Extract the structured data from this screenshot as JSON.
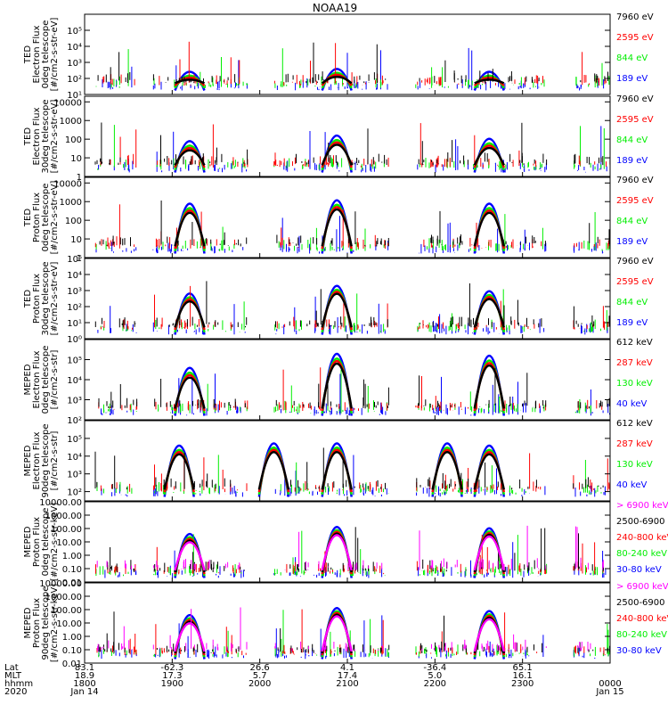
{
  "title": "NOAA19",
  "colors": {
    "black": "#000000",
    "red": "#ff0000",
    "green": "#00ee00",
    "blue": "#0000ff",
    "magenta": "#ff00ff"
  },
  "chart_data": [
    {
      "type": "scatter",
      "ylabel": [
        "TED",
        "Electron Flux",
        "0deg telescope",
        "[#/cm2-s-str-eV]"
      ],
      "log": true,
      "ylim": [
        10,
        1000000
      ],
      "yticks": [
        "10¹",
        "10²",
        "10³",
        "10⁴",
        "10⁵"
      ],
      "ytick_values": [
        10,
        100,
        1000,
        10000,
        100000
      ],
      "series": [
        {
          "name": "7960 eV",
          "color": "#000000"
        },
        {
          "name": "2595 eV",
          "color": "#ff0000"
        },
        {
          "name": "844 eV",
          "color": "#00ee00"
        },
        {
          "name": "189 eV",
          "color": "#0000ff"
        }
      ],
      "peaks": [
        {
          "x": 0.2,
          "y": 200
        },
        {
          "x": 0.48,
          "y": 300
        },
        {
          "x": 0.77,
          "y": 200
        }
      ]
    },
    {
      "type": "scatter",
      "ylabel": [
        "TED",
        "Electron Flux",
        "30deg telescope",
        "[#/cm2-s-str-eV]"
      ],
      "log": true,
      "ylim": [
        1,
        20000
      ],
      "yticks": [
        "1",
        "10",
        "100",
        "1000",
        "10000"
      ],
      "ytick_values": [
        1,
        10,
        100,
        1000,
        10000
      ],
      "series": [
        {
          "name": "7960 eV",
          "color": "#000000"
        },
        {
          "name": "2595 eV",
          "color": "#ff0000"
        },
        {
          "name": "844 eV",
          "color": "#00ee00"
        },
        {
          "name": "189 eV",
          "color": "#0000ff"
        }
      ],
      "peaks": [
        {
          "x": 0.2,
          "y": 60
        },
        {
          "x": 0.48,
          "y": 120
        },
        {
          "x": 0.77,
          "y": 80
        }
      ]
    },
    {
      "type": "scatter",
      "ylabel": [
        "TED",
        "Proton Flux",
        "0deg telescope",
        "[#/cm2-s-str-eV]"
      ],
      "log": true,
      "ylim": [
        1,
        20000
      ],
      "yticks": [
        "1",
        "10",
        "100",
        "1000",
        "10000"
      ],
      "ytick_values": [
        1,
        10,
        100,
        1000,
        10000
      ],
      "series": [
        {
          "name": "7960 eV",
          "color": "#000000"
        },
        {
          "name": "2595 eV",
          "color": "#ff0000"
        },
        {
          "name": "844 eV",
          "color": "#00ee00"
        },
        {
          "name": "189 eV",
          "color": "#0000ff"
        }
      ],
      "peaks": [
        {
          "x": 0.2,
          "y": 600
        },
        {
          "x": 0.48,
          "y": 900
        },
        {
          "x": 0.77,
          "y": 600
        }
      ]
    },
    {
      "type": "scatter",
      "ylabel": [
        "TED",
        "Proton Flux",
        "30deg telescope",
        "[#/cm2-s-str-eV]"
      ],
      "log": true,
      "ylim": [
        1,
        100000
      ],
      "yticks": [
        "10⁰",
        "10¹",
        "10²",
        "10³",
        "10⁴",
        "10⁵"
      ],
      "ytick_values": [
        1,
        10,
        100,
        1000,
        10000,
        100000
      ],
      "series": [
        {
          "name": "7960 eV",
          "color": "#000000"
        },
        {
          "name": "2595 eV",
          "color": "#ff0000"
        },
        {
          "name": "844 eV",
          "color": "#00ee00"
        },
        {
          "name": "189 eV",
          "color": "#0000ff"
        }
      ],
      "peaks": [
        {
          "x": 0.2,
          "y": 500
        },
        {
          "x": 0.48,
          "y": 1500
        },
        {
          "x": 0.77,
          "y": 700
        }
      ]
    },
    {
      "type": "scatter",
      "ylabel": [
        "MEPED",
        "Electron Flux",
        "0deg telescope",
        "[#/cm2-s-str]"
      ],
      "log": true,
      "ylim": [
        100,
        1000000
      ],
      "yticks": [
        "10²",
        "10³",
        "10⁴",
        "10⁵"
      ],
      "ytick_values": [
        100,
        1000,
        10000,
        100000
      ],
      "series": [
        {
          "name": "612 keV",
          "color": "#000000"
        },
        {
          "name": "287 keV",
          "color": "#ff0000"
        },
        {
          "name": "130 keV",
          "color": "#00ee00"
        },
        {
          "name": "40 keV",
          "color": "#0000ff"
        }
      ],
      "peaks": [
        {
          "x": 0.2,
          "y": 30000
        },
        {
          "x": 0.48,
          "y": 150000
        },
        {
          "x": 0.77,
          "y": 120000
        }
      ]
    },
    {
      "type": "scatter",
      "ylabel": [
        "MEPED",
        "Electron Flux",
        "90deg telescope",
        "[#/cm2-s-str]"
      ],
      "log": true,
      "ylim": [
        30,
        1000000
      ],
      "yticks": [
        "10²",
        "10³",
        "10⁴",
        "10⁵"
      ],
      "ytick_values": [
        100,
        1000,
        10000,
        100000
      ],
      "series": [
        {
          "name": "612 keV",
          "color": "#000000"
        },
        {
          "name": "287 keV",
          "color": "#ff0000"
        },
        {
          "name": "130 keV",
          "color": "#00ee00"
        },
        {
          "name": "40 keV",
          "color": "#0000ff"
        }
      ],
      "peaks": [
        {
          "x": 0.18,
          "y": 30000
        },
        {
          "x": 0.36,
          "y": 40000
        },
        {
          "x": 0.48,
          "y": 40000
        },
        {
          "x": 0.69,
          "y": 40000
        },
        {
          "x": 0.77,
          "y": 30000
        }
      ]
    },
    {
      "type": "scatter",
      "ylabel": [
        "MEPED",
        "Proton Flux",
        "0deg telescope",
        "[#/cm2-s-str-keV]"
      ],
      "log": true,
      "ylim": [
        0.01,
        10000
      ],
      "yticks": [
        "0.01",
        "0.10",
        "1.00",
        "10.00",
        "100.00",
        "1000.00",
        "10000.00"
      ],
      "ytick_values": [
        0.01,
        0.1,
        1,
        10,
        100,
        1000,
        10000
      ],
      "series": [
        {
          "name": "> 6900 keV",
          "color": "#ff00ff"
        },
        {
          "name": "2500-6900",
          "color": "#000000"
        },
        {
          "name": "240-800 keV",
          "color": "#ff0000"
        },
        {
          "name": "80-240 keV",
          "color": "#00ee00"
        },
        {
          "name": "30-80 keV",
          "color": "#0000ff"
        }
      ],
      "peaks": [
        {
          "x": 0.2,
          "y": 30
        },
        {
          "x": 0.48,
          "y": 100
        },
        {
          "x": 0.77,
          "y": 80
        }
      ]
    },
    {
      "type": "scatter",
      "ylabel": [
        "MEPED",
        "Proton Flux",
        "90deg telescope",
        "[#/cm2-s-str-keV]"
      ],
      "log": true,
      "ylim": [
        0.01,
        10000
      ],
      "yticks": [
        "0.01",
        "0.10",
        "1.00",
        "10.00",
        "100.00",
        "1000.00",
        "10000.00"
      ],
      "ytick_values": [
        0.01,
        0.1,
        1,
        10,
        100,
        1000,
        10000
      ],
      "series": [
        {
          "name": "> 6900 keV",
          "color": "#ff00ff"
        },
        {
          "name": "2500-6900",
          "color": "#000000"
        },
        {
          "name": "240-800 keV",
          "color": "#ff0000"
        },
        {
          "name": "80-240 keV",
          "color": "#00ee00"
        },
        {
          "name": "30-80 keV",
          "color": "#0000ff"
        }
      ],
      "peaks": [
        {
          "x": 0.2,
          "y": 30
        },
        {
          "x": 0.48,
          "y": 100
        },
        {
          "x": 0.77,
          "y": 60
        }
      ]
    }
  ],
  "xaxis": {
    "row_labels": [
      "Lat",
      "MLT",
      "hhmm",
      "2020"
    ],
    "columns": [
      {
        "lat": "83.1",
        "mlt": "18.9",
        "time": "1800",
        "date": "Jan 14"
      },
      {
        "lat": "-62.3",
        "mlt": "17.3",
        "time": "1900",
        "date": ""
      },
      {
        "lat": "26.6",
        "mlt": "5.7",
        "time": "2000",
        "date": ""
      },
      {
        "lat": "4.1",
        "mlt": "17.4",
        "time": "2100",
        "date": ""
      },
      {
        "lat": "-36.4",
        "mlt": "5.0",
        "time": "2200",
        "date": ""
      },
      {
        "lat": "65.1",
        "mlt": "16.1",
        "time": "2300",
        "date": ""
      },
      {
        "lat": "",
        "mlt": "",
        "time": "0000",
        "date": "Jan 15"
      }
    ]
  }
}
